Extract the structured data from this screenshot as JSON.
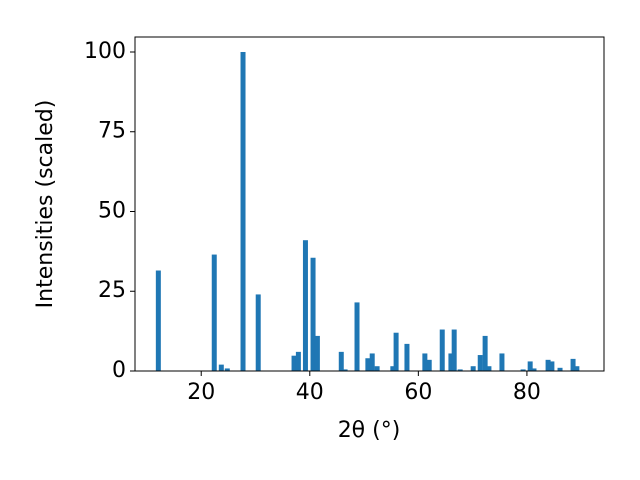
{
  "chart_data": {
    "type": "bar",
    "xlabel": "2θ (°)",
    "ylabel": "Intensities (scaled)",
    "x": [
      12.1,
      22.4,
      23.7,
      24.8,
      27.7,
      30.5,
      37.1,
      37.9,
      39.2,
      40.6,
      41.4,
      45.8,
      46.5,
      48.7,
      50.7,
      51.5,
      52.4,
      55.3,
      55.9,
      57.9,
      61.2,
      62.0,
      64.4,
      66.0,
      66.6,
      67.7,
      70.1,
      71.4,
      72.3,
      73.0,
      75.4,
      79.3,
      80.6,
      81.3,
      83.9,
      84.6,
      86.1,
      88.5,
      89.2
    ],
    "values": [
      31.5,
      36.5,
      2,
      0.8,
      100,
      24,
      4.8,
      6,
      41,
      35.5,
      11,
      6,
      0.5,
      21.5,
      4,
      5.5,
      1.5,
      1.5,
      12,
      8.5,
      5.5,
      3.5,
      13,
      5.5,
      13,
      0.5,
      1.5,
      5,
      11,
      1.5,
      5.5,
      0.5,
      3,
      0.8,
      3.5,
      3,
      1,
      3.8,
      1.5
    ],
    "color": "#1f77b4",
    "xlim": [
      7.8,
      94.2
    ],
    "xticks": [
      20,
      40,
      60,
      80
    ],
    "ylim": [
      0,
      104.7
    ],
    "yticks": [
      0,
      25,
      50,
      75,
      100
    ],
    "grid": false
  }
}
